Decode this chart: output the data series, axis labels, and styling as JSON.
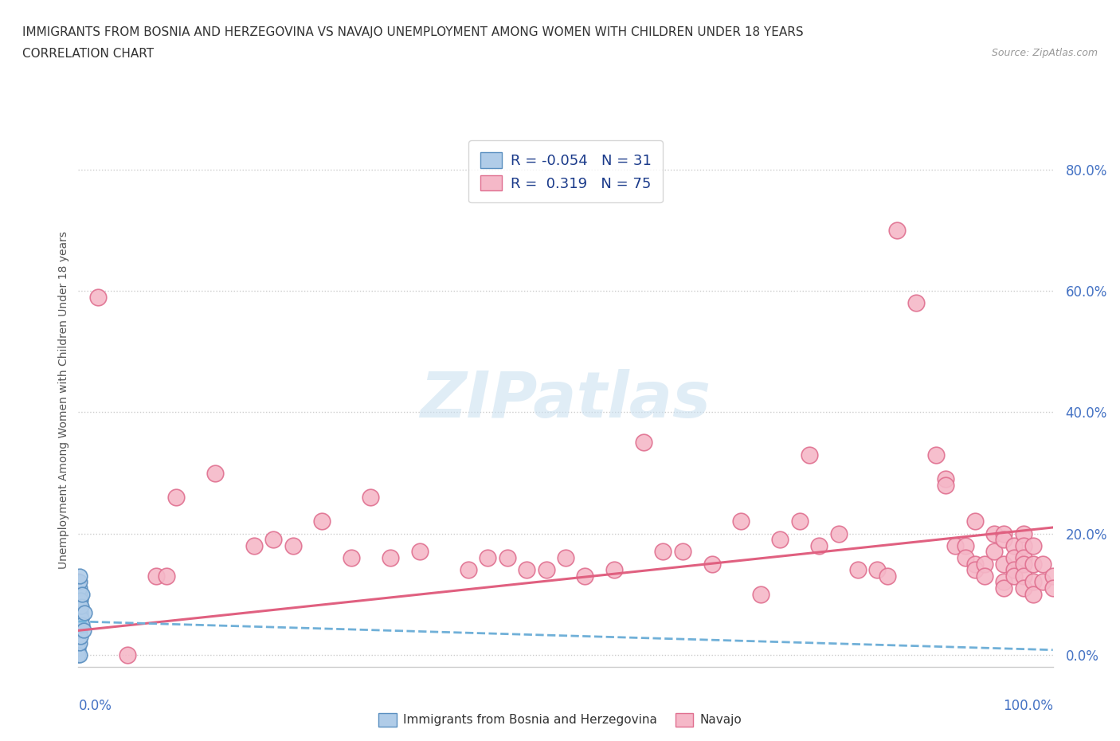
{
  "title_line1": "IMMIGRANTS FROM BOSNIA AND HERZEGOVINA VS NAVAJO UNEMPLOYMENT AMONG WOMEN WITH CHILDREN UNDER 18 YEARS",
  "title_line2": "CORRELATION CHART",
  "source_text": "Source: ZipAtlas.com",
  "ylabel": "Unemployment Among Women with Children Under 18 years",
  "xlim": [
    0.0,
    1.0
  ],
  "ylim": [
    -0.02,
    0.86
  ],
  "yticks": [
    0.0,
    0.2,
    0.4,
    0.6,
    0.8
  ],
  "ytick_labels": [
    "0.0%",
    "20.0%",
    "40.0%",
    "60.0%",
    "80.0%"
  ],
  "watermark": "ZIPatlas",
  "blue_scatter": [
    [
      0.0,
      0.05
    ],
    [
      0.0,
      0.04
    ],
    [
      0.0,
      0.03
    ],
    [
      0.0,
      0.02
    ],
    [
      0.0,
      0.01
    ],
    [
      0.0,
      0.0
    ],
    [
      0.0,
      0.06
    ],
    [
      0.0,
      0.07
    ],
    [
      0.0,
      0.08
    ],
    [
      0.0,
      0.09
    ],
    [
      0.001,
      0.0
    ],
    [
      0.001,
      0.02
    ],
    [
      0.001,
      0.04
    ],
    [
      0.001,
      0.06
    ],
    [
      0.001,
      0.07
    ],
    [
      0.001,
      0.08
    ],
    [
      0.001,
      0.09
    ],
    [
      0.001,
      0.1
    ],
    [
      0.001,
      0.11
    ],
    [
      0.001,
      0.12
    ],
    [
      0.001,
      0.13
    ],
    [
      0.002,
      0.03
    ],
    [
      0.002,
      0.05
    ],
    [
      0.002,
      0.07
    ],
    [
      0.002,
      0.09
    ],
    [
      0.003,
      0.06
    ],
    [
      0.003,
      0.08
    ],
    [
      0.004,
      0.05
    ],
    [
      0.004,
      0.1
    ],
    [
      0.005,
      0.04
    ],
    [
      0.006,
      0.07
    ]
  ],
  "pink_scatter": [
    [
      0.0,
      0.12
    ],
    [
      0.02,
      0.59
    ],
    [
      0.05,
      0.0
    ],
    [
      0.08,
      0.13
    ],
    [
      0.09,
      0.13
    ],
    [
      0.1,
      0.26
    ],
    [
      0.14,
      0.3
    ],
    [
      0.18,
      0.18
    ],
    [
      0.2,
      0.19
    ],
    [
      0.22,
      0.18
    ],
    [
      0.25,
      0.22
    ],
    [
      0.28,
      0.16
    ],
    [
      0.3,
      0.26
    ],
    [
      0.32,
      0.16
    ],
    [
      0.35,
      0.17
    ],
    [
      0.4,
      0.14
    ],
    [
      0.42,
      0.16
    ],
    [
      0.44,
      0.16
    ],
    [
      0.46,
      0.14
    ],
    [
      0.48,
      0.14
    ],
    [
      0.5,
      0.16
    ],
    [
      0.52,
      0.13
    ],
    [
      0.55,
      0.14
    ],
    [
      0.58,
      0.35
    ],
    [
      0.6,
      0.17
    ],
    [
      0.62,
      0.17
    ],
    [
      0.65,
      0.15
    ],
    [
      0.68,
      0.22
    ],
    [
      0.7,
      0.1
    ],
    [
      0.72,
      0.19
    ],
    [
      0.74,
      0.22
    ],
    [
      0.75,
      0.33
    ],
    [
      0.76,
      0.18
    ],
    [
      0.78,
      0.2
    ],
    [
      0.8,
      0.14
    ],
    [
      0.82,
      0.14
    ],
    [
      0.83,
      0.13
    ],
    [
      0.84,
      0.7
    ],
    [
      0.86,
      0.58
    ],
    [
      0.88,
      0.33
    ],
    [
      0.89,
      0.29
    ],
    [
      0.89,
      0.28
    ],
    [
      0.9,
      0.18
    ],
    [
      0.91,
      0.18
    ],
    [
      0.91,
      0.16
    ],
    [
      0.92,
      0.22
    ],
    [
      0.92,
      0.15
    ],
    [
      0.92,
      0.14
    ],
    [
      0.93,
      0.15
    ],
    [
      0.93,
      0.13
    ],
    [
      0.94,
      0.2
    ],
    [
      0.94,
      0.17
    ],
    [
      0.95,
      0.2
    ],
    [
      0.95,
      0.19
    ],
    [
      0.95,
      0.15
    ],
    [
      0.95,
      0.12
    ],
    [
      0.95,
      0.11
    ],
    [
      0.96,
      0.18
    ],
    [
      0.96,
      0.16
    ],
    [
      0.96,
      0.14
    ],
    [
      0.96,
      0.13
    ],
    [
      0.97,
      0.2
    ],
    [
      0.97,
      0.18
    ],
    [
      0.97,
      0.16
    ],
    [
      0.97,
      0.15
    ],
    [
      0.97,
      0.13
    ],
    [
      0.97,
      0.11
    ],
    [
      0.98,
      0.18
    ],
    [
      0.98,
      0.15
    ],
    [
      0.98,
      0.12
    ],
    [
      0.98,
      0.1
    ],
    [
      0.99,
      0.15
    ],
    [
      0.99,
      0.12
    ],
    [
      1.0,
      0.13
    ],
    [
      1.0,
      0.11
    ]
  ],
  "pink_trend_x": [
    0.0,
    1.0
  ],
  "pink_trend_y": [
    0.04,
    0.21
  ],
  "blue_trend_x": [
    0.0,
    1.0
  ],
  "blue_trend_y": [
    0.055,
    0.008
  ],
  "blue_scatter_color_face": "#b0cce8",
  "blue_scatter_color_edge": "#5a8fc0",
  "pink_scatter_color_face": "#f5b8c8",
  "pink_scatter_color_edge": "#e07090",
  "pink_line_color": "#e06080",
  "blue_line_color": "#70b0d8",
  "grid_color": "#cccccc",
  "ytick_color": "#4472c4",
  "title_color": "#333333",
  "source_color": "#999999"
}
